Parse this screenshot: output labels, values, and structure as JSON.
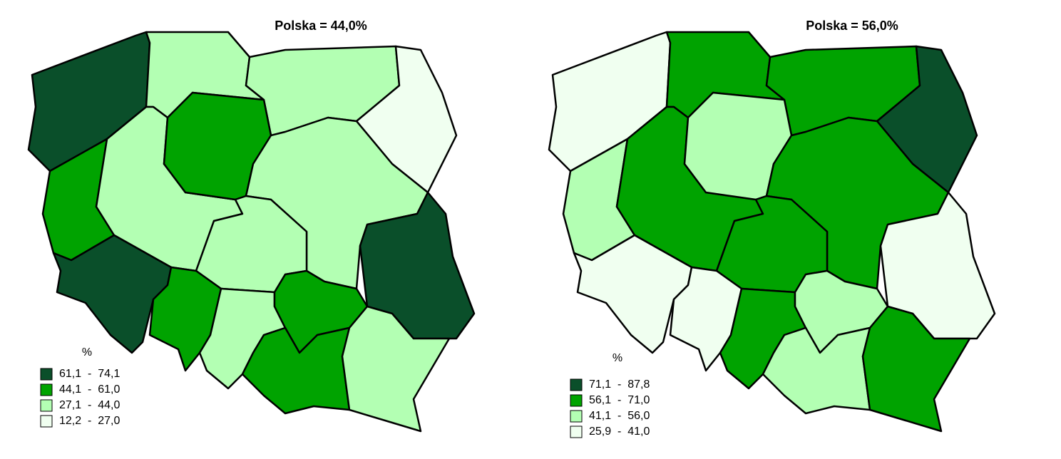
{
  "maps": [
    {
      "title": "Polska = 44,0%",
      "unit": "%",
      "legend": [
        {
          "label": "61,1  -  74,1",
          "color": "#0a4f2a"
        },
        {
          "label": "44,1  -  61,0",
          "color": "#00a300"
        },
        {
          "label": "27,1  -  44,0",
          "color": "#b3ffb3"
        },
        {
          "label": "12,2  -  27,0",
          "color": "#f0fff0"
        }
      ]
    },
    {
      "title": "Polska = 56,0%",
      "unit": "%",
      "legend": [
        {
          "label": "71,1  -  87,8",
          "color": "#0a4f2a"
        },
        {
          "label": "56,1  -  71,0",
          "color": "#00a300"
        },
        {
          "label": "41,1  -  56,0",
          "color": "#b3ffb3"
        },
        {
          "label": "25,9  -  41,0",
          "color": "#f0fff0"
        }
      ]
    }
  ]
}
